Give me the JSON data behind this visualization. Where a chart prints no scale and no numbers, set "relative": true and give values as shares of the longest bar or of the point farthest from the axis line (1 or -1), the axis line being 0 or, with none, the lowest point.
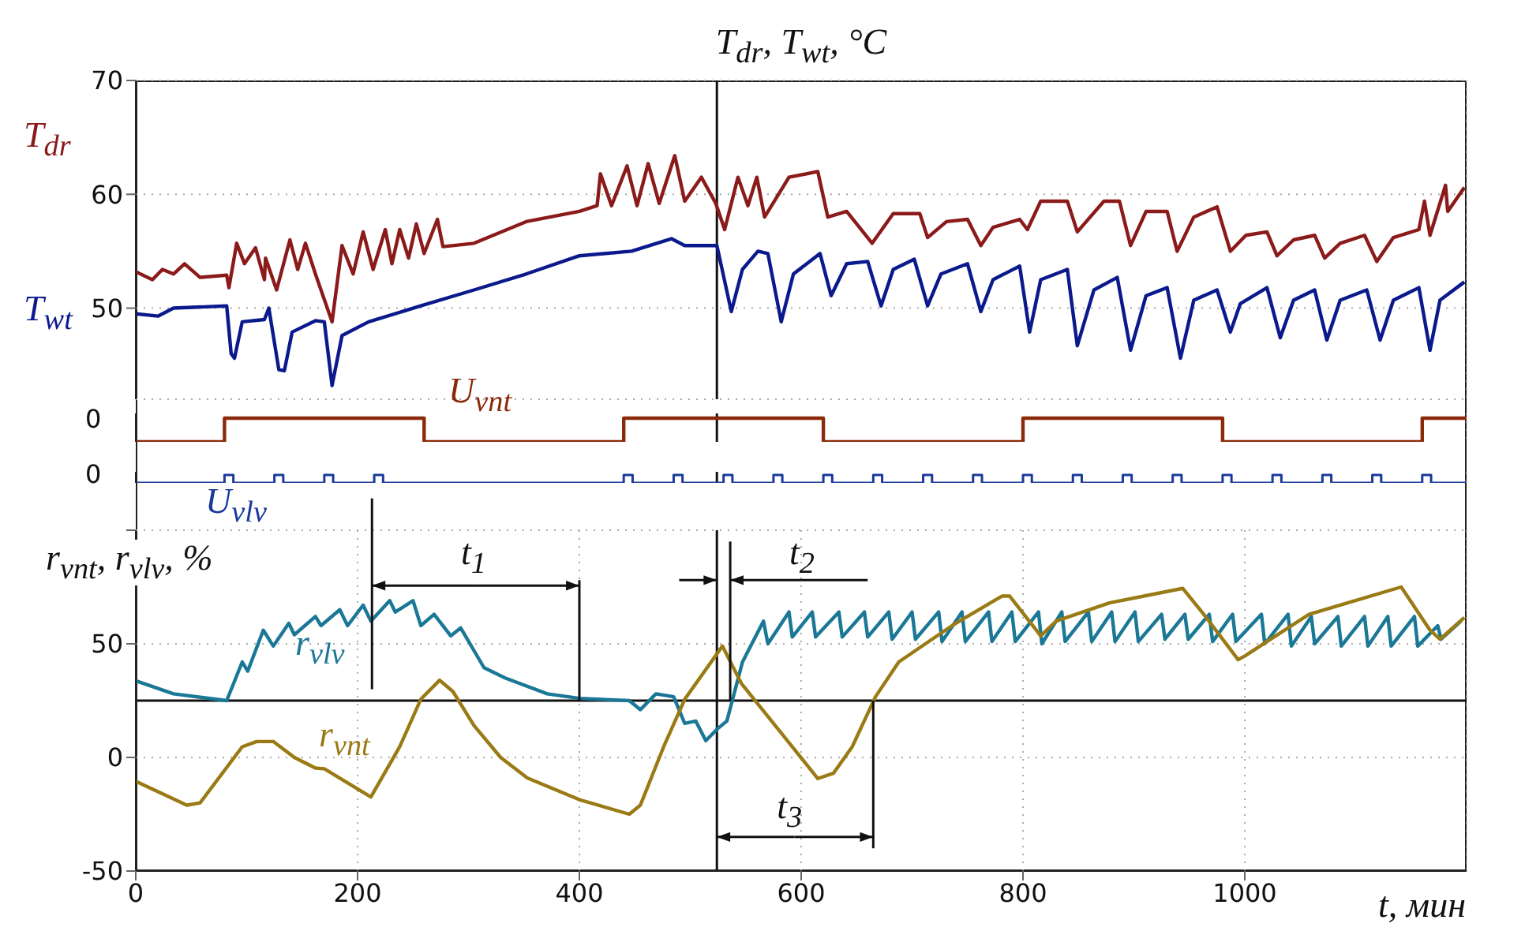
{
  "chart_data": [
    {
      "type": "line",
      "title": "T$_{dr}$, T$_{wt}$, °C",
      "xlim": [
        0,
        1200
      ],
      "xticks": [
        0,
        200,
        400,
        600,
        800,
        1000
      ],
      "ylim": [
        42,
        70
      ],
      "yticks": [
        50,
        60,
        70
      ],
      "tick_labels": "y",
      "grid": true,
      "legend": false,
      "ref_lines": [
        {
          "axis": "x",
          "value": 524
        }
      ],
      "series": [
        {
          "name": "T$_{dr}$",
          "color": "#8b1a1a",
          "x": [
            0,
            15,
            24,
            34,
            44,
            58,
            82,
            84,
            91,
            98,
            108,
            116,
            117,
            127,
            139,
            146,
            153,
            162,
            177,
            186,
            196,
            205,
            214,
            225,
            231,
            238,
            246,
            253,
            260,
            272,
            277,
            305,
            352,
            400,
            416,
            419,
            429,
            443,
            452,
            462,
            472,
            486,
            495,
            510,
            523,
            531,
            543,
            552,
            560,
            567,
            589,
            615,
            624,
            641,
            664,
            683,
            707,
            714,
            731,
            750,
            762,
            773,
            797,
            804,
            816,
            840,
            849,
            873,
            887,
            897,
            911,
            930,
            939,
            954,
            975,
            987,
            1001,
            1020,
            1029,
            1044,
            1063,
            1072,
            1086,
            1108,
            1119,
            1134,
            1157,
            1162,
            1167,
            1181,
            1183,
            1198
          ],
          "values": [
            53.2,
            52.5,
            53.4,
            53,
            53.9,
            52.7,
            52.9,
            51.8,
            55.7,
            53.9,
            55.3,
            52.5,
            54.4,
            51.6,
            56,
            53.4,
            55.7,
            53,
            48.8,
            55.5,
            53,
            56.7,
            53.4,
            56.9,
            53.9,
            56.9,
            54.4,
            57.4,
            54.8,
            57.8,
            55.4,
            55.7,
            57.6,
            58.5,
            59,
            61.8,
            59,
            62.5,
            59,
            62.7,
            59.2,
            63.4,
            59.4,
            61.5,
            59.2,
            56.9,
            61.5,
            59,
            61.5,
            58,
            61.5,
            62,
            58,
            58.5,
            55.7,
            58.3,
            58.3,
            56.2,
            57.6,
            57.8,
            55.5,
            57.1,
            57.8,
            56.9,
            59.4,
            59.4,
            56.7,
            59.4,
            59.4,
            55.5,
            58.5,
            58.5,
            55,
            58,
            58.9,
            55,
            56.4,
            56.7,
            54.6,
            56,
            56.4,
            54.4,
            55.7,
            56.4,
            54.1,
            56.2,
            56.9,
            59.4,
            56.4,
            60.8,
            58.5,
            60.6
          ]
        },
        {
          "name": "T$_{wt}$",
          "color": "#0a1a8c",
          "x": [
            0,
            20,
            34,
            82,
            86,
            89,
            96,
            116,
            120,
            129,
            134,
            141,
            162,
            170,
            177,
            186,
            210,
            257,
            305,
            352,
            400,
            447,
            483,
            495,
            524,
            537,
            547,
            561,
            570,
            582,
            593,
            617,
            627,
            641,
            660,
            672,
            683,
            702,
            714,
            726,
            750,
            762,
            773,
            797,
            806,
            816,
            840,
            849,
            864,
            885,
            897,
            911,
            930,
            942,
            954,
            975,
            987,
            996,
            1020,
            1032,
            1044,
            1063,
            1074,
            1086,
            1110,
            1122,
            1134,
            1157,
            1167,
            1176,
            1198
          ],
          "values": [
            49.5,
            49.3,
            50,
            50.2,
            46,
            45.6,
            48.8,
            49,
            50,
            44.6,
            44.5,
            47.9,
            48.9,
            48.8,
            43.2,
            47.6,
            48.8,
            50.2,
            51.6,
            53,
            54.6,
            55,
            56.1,
            55.5,
            55.5,
            49.7,
            53.4,
            55,
            54.8,
            48.8,
            53,
            54.8,
            51.1,
            53.9,
            54.1,
            50.2,
            53.4,
            54.3,
            50.2,
            53,
            53.9,
            49.7,
            52.5,
            53.7,
            47.9,
            52.5,
            53.4,
            46.7,
            51.6,
            52.7,
            46.3,
            51.1,
            51.8,
            45.6,
            50.7,
            51.6,
            47.9,
            50.4,
            51.8,
            47.4,
            50.7,
            51.6,
            47.2,
            50.7,
            51.6,
            47.2,
            50.7,
            51.8,
            46.3,
            50.7,
            52.3
          ]
        }
      ]
    },
    {
      "type": "step",
      "relative": true,
      "xlim": [
        0,
        1200
      ],
      "xticks": [
        0,
        200,
        400,
        600,
        800,
        1000
      ],
      "tick_labels": false,
      "grid": "x",
      "legend": false,
      "annotations": [
        "0"
      ],
      "ref_lines": [
        {
          "axis": "x",
          "value": 524
        }
      ],
      "series": [
        {
          "name": "U$_{vnt}$",
          "color": "#8b2a0a",
          "x": [
            0,
            80,
            260,
            440,
            620,
            800,
            980,
            1160,
            1200
          ],
          "values": [
            0,
            1,
            0,
            1,
            0,
            1,
            0,
            1,
            1
          ]
        }
      ]
    },
    {
      "type": "step",
      "relative": true,
      "xlim": [
        0,
        1200
      ],
      "xticks": [
        0,
        200,
        400,
        600,
        800,
        1000
      ],
      "tick_labels": false,
      "grid": "x",
      "legend": false,
      "annotations": [
        "0"
      ],
      "ref_lines": [
        {
          "axis": "x",
          "value": 524
        }
      ],
      "series": [
        {
          "name": "U$_{vlv}$",
          "color": "#1a3a9a",
          "x": [
            0,
            80,
            88,
            125,
            133,
            170,
            178,
            215,
            223,
            440,
            448,
            485,
            493,
            530,
            538,
            575,
            583,
            620,
            628,
            665,
            673,
            710,
            718,
            755,
            763,
            800,
            808,
            845,
            853,
            890,
            898,
            935,
            943,
            980,
            988,
            1025,
            1033,
            1070,
            1078,
            1115,
            1123,
            1160,
            1168,
            1200
          ],
          "values": [
            0,
            1,
            0,
            1,
            0,
            1,
            0,
            1,
            0,
            1,
            0,
            1,
            0,
            1,
            0,
            1,
            0,
            1,
            0,
            1,
            0,
            1,
            0,
            1,
            0,
            1,
            0,
            1,
            0,
            1,
            0,
            1,
            0,
            1,
            0,
            1,
            0,
            1,
            0,
            1,
            0,
            1,
            0,
            0
          ]
        }
      ]
    },
    {
      "type": "line",
      "xlabel": "t, мин",
      "ylabel": "r$_{vnt}$, r$_{vlv}$, %",
      "xlim": [
        0,
        1200
      ],
      "xticks": [
        0,
        200,
        400,
        600,
        800,
        1000
      ],
      "ylim": [
        -50,
        100
      ],
      "yticks": [
        -50,
        0,
        50,
        {
          "value": 100,
          "label": null
        }
      ],
      "grid": true,
      "legend": false,
      "ref_lines": [
        {
          "axis": "y",
          "value": 25
        },
        {
          "axis": "x",
          "value": 524
        }
      ],
      "annotations": [
        "t$_{1}$",
        "t$_{2}$",
        {
          "text": "t$_{3}$",
          "x": 524,
          "y": -35
        }
      ],
      "series": [
        {
          "name": "r$_{vlv}$",
          "color": "#1a7896",
          "x": [
            0,
            34,
            82,
            96,
            101,
            115,
            124,
            138,
            143,
            162,
            167,
            184,
            191,
            205,
            212,
            229,
            234,
            250,
            257,
            269,
            284,
            293,
            314,
            333,
            371,
            400,
            445,
            455,
            469,
            485,
            495,
            505,
            514,
            525,
            533,
            547,
            566,
            570,
            589,
            592,
            610,
            613,
            634,
            637,
            657,
            660,
            679,
            682,
            700,
            703,
            724,
            727,
            745,
            748,
            769,
            772,
            790,
            793,
            814,
            817,
            835,
            838,
            859,
            862,
            880,
            883,
            901,
            904,
            925,
            928,
            946,
            949,
            968,
            971,
            989,
            992,
            1015,
            1018,
            1039,
            1042,
            1060,
            1063,
            1084,
            1087,
            1108,
            1111,
            1129,
            1132,
            1153,
            1156,
            1174,
            1177,
            1195
          ],
          "values": [
            33.7,
            28,
            25,
            42,
            38,
            56,
            49,
            59,
            54,
            62,
            58,
            65,
            58,
            67,
            60,
            69,
            64,
            69,
            58,
            63,
            53.5,
            57,
            39.5,
            35,
            28,
            26,
            25,
            21,
            28,
            26.7,
            15,
            16,
            7.4,
            12.8,
            16,
            41.9,
            60,
            50,
            64,
            53,
            64,
            53,
            64,
            53,
            64,
            53,
            64,
            52,
            64,
            52,
            64,
            51,
            64,
            51,
            64,
            51,
            64,
            51,
            64,
            50,
            64,
            51,
            64,
            51,
            64,
            51,
            64,
            51,
            63,
            52,
            63,
            52,
            63,
            51,
            63,
            51,
            63,
            50,
            63,
            49,
            62,
            50,
            62,
            49,
            62,
            49,
            62,
            49,
            62,
            49,
            58,
            52,
            60
          ]
        },
        {
          "name": "r$_{vnt}$",
          "color": "#9a7a14",
          "x": [
            0,
            46,
            58,
            96,
            109,
            124,
            143,
            162,
            170,
            212,
            238,
            257,
            274,
            286,
            305,
            329,
            353,
            400,
            445,
            455,
            476,
            495,
            529,
            546,
            615,
            629,
            646,
            667,
            688,
            736,
            781,
            788,
            816,
            830,
            878,
            944,
            963,
            994,
            1001,
            1020,
            1058,
            1141,
            1167,
            1176,
            1198
          ],
          "values": [
            -10.5,
            -21,
            -20,
            4.7,
            7,
            7,
            0,
            -4.7,
            -5,
            -17.4,
            4.7,
            25.6,
            34,
            29,
            14,
            0,
            -9,
            -18.6,
            -25,
            -21,
            4.7,
            25.6,
            49,
            32.6,
            -9.3,
            -7,
            4.7,
            26.7,
            42,
            58,
            71,
            71,
            53.5,
            60,
            68,
            74.4,
            63,
            43,
            44.9,
            51,
            63,
            75,
            56,
            52,
            61.6
          ]
        }
      ]
    }
  ]
}
